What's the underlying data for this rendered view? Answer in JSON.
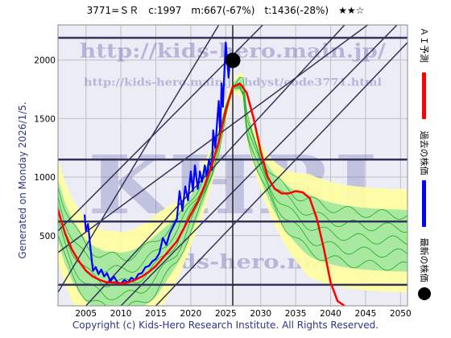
{
  "header": {
    "code": "3771=ＳＲ",
    "current": "c:1997",
    "max": "m:667(-67%)",
    "target": "t:1436(-28%)",
    "rating": "★★☆"
  },
  "side_label": "Generated on Monday 2026/1/5.",
  "copyright": "Copyright (c) Kids-Hero Research Institute. All Rights Reserved.",
  "watermarks": {
    "url": "http://kids-hero.main.jp/",
    "page_url": "http://kids-hero.main.jp/hdyst/code3771.html",
    "logo": "KHRI",
    "email": "info@kids-hero.main.jp"
  },
  "legend": {
    "ai_forecast": "ＡＩ予測",
    "past_price": "過去の株価",
    "latest_price": "最新の株価"
  },
  "colors": {
    "price": "#0000ff",
    "forecast": "#ff0000",
    "band_light": "#ffffa0",
    "band_green": "#9fe59f",
    "ensemble": "#22aa22",
    "grid": "#c0c0c0",
    "plot_bg": "#ececf6",
    "ref_lines": "#33335a"
  },
  "chart_data": {
    "type": "line",
    "xlim": [
      2001,
      2051
    ],
    "ylim": [
      -100,
      2300
    ],
    "x_ticks": [
      2005,
      2010,
      2015,
      2020,
      2025,
      2030,
      2035,
      2040,
      2045,
      2050
    ],
    "y_ticks": [
      500,
      1000,
      1500,
      2000
    ],
    "grid": true,
    "horizontal_levels": [
      80,
      620,
      1150,
      2190
    ],
    "vertical_marker_x": 2026,
    "latest_point": {
      "x": 2026.0,
      "y": 1997
    },
    "diagonal_lines": [
      {
        "x": [
          2001,
          2030.3
        ],
        "y": [
          540,
          2300
        ]
      },
      {
        "x": [
          2001,
          2045.3
        ],
        "y": [
          355,
          2300
        ]
      },
      {
        "x": [
          2005,
          2042.0
        ],
        "y": [
          -100,
          2300
        ]
      },
      {
        "x": [
          2010,
          2049.5
        ],
        "y": [
          -100,
          2300
        ]
      },
      {
        "x": [
          2015,
          2051.0
        ],
        "y": [
          -100,
          2150
        ]
      },
      {
        "x": [
          2001,
          2024.0
        ],
        "y": [
          15,
          2300
        ]
      }
    ],
    "series": [
      {
        "name": "過去の株価",
        "x": [
          2004.8,
          2005.0,
          2005.3,
          2005.6,
          2006.0,
          2006.4,
          2006.8,
          2007.2,
          2007.6,
          2008.0,
          2008.5,
          2009.0,
          2009.5,
          2010.0,
          2010.5,
          2011.0,
          2011.5,
          2012.0,
          2012.5,
          2013.0,
          2013.5,
          2014.0,
          2014.5,
          2015.0,
          2015.5,
          2016.0,
          2016.5,
          2017.0,
          2017.5,
          2018.0,
          2018.4,
          2018.8,
          2019.2,
          2019.6,
          2020.0,
          2020.3,
          2020.6,
          2021.0,
          2021.3,
          2021.6,
          2022.0,
          2022.3,
          2022.6,
          2023.0,
          2023.2,
          2023.5,
          2023.8,
          2024.0,
          2024.2,
          2024.4,
          2024.6,
          2024.8,
          2025.0,
          2025.2,
          2025.4,
          2025.6,
          2025.8,
          2026.0
        ],
        "y": [
          680,
          540,
          600,
          420,
          200,
          230,
          170,
          210,
          150,
          180,
          110,
          150,
          100,
          90,
          120,
          100,
          140,
          120,
          170,
          180,
          230,
          240,
          280,
          300,
          350,
          480,
          420,
          520,
          580,
          640,
          880,
          710,
          920,
          800,
          1050,
          880,
          1100,
          900,
          1050,
          960,
          1100,
          1000,
          1150,
          1060,
          1400,
          1250,
          1500,
          1650,
          1350,
          1800,
          1600,
          1900,
          2150,
          2000,
          1850,
          2000,
          1950,
          1997
        ]
      },
      {
        "name": "ＡＩ予測",
        "x": [
          2001,
          2002,
          2003,
          2004,
          2005,
          2006,
          2007,
          2008,
          2009,
          2010,
          2011,
          2012,
          2013,
          2014,
          2015,
          2016,
          2017,
          2018,
          2019,
          2020,
          2021,
          2022,
          2023,
          2024,
          2025,
          2026,
          2027,
          2028,
          2029,
          2030,
          2031,
          2032,
          2033,
          2034,
          2035,
          2036,
          2037,
          2038,
          2039,
          2040,
          2041,
          2042
        ],
        "y": [
          720,
          520,
          380,
          280,
          200,
          150,
          120,
          100,
          100,
          90,
          100,
          120,
          150,
          190,
          240,
          310,
          380,
          450,
          560,
          680,
          790,
          930,
          1100,
          1300,
          1570,
          1770,
          1800,
          1720,
          1500,
          1220,
          1000,
          900,
          860,
          860,
          880,
          870,
          820,
          650,
          400,
          100,
          -60,
          -100
        ]
      }
    ]
  }
}
